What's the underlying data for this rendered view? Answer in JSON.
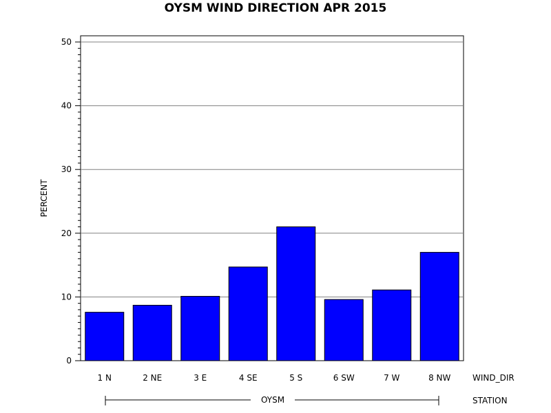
{
  "chart_data": {
    "type": "bar",
    "title": "OYSM WIND DIRECTION APR 2015",
    "ylabel": "PERCENT",
    "xlabel": "WIND_DIR",
    "group_axis_label": "STATION",
    "group_label": "OYSM",
    "categories": [
      "1 N",
      "2 NE",
      "3 E",
      "4 SE",
      "5 S",
      "6 SW",
      "7 W",
      "8 NW"
    ],
    "values": [
      7.6,
      8.7,
      10.1,
      14.7,
      21.0,
      9.6,
      11.1,
      17.0
    ],
    "ylim": [
      0,
      50
    ],
    "yticks": [
      "0",
      "10",
      "20",
      "30",
      "40",
      "50"
    ],
    "grid": true,
    "bar_color": "#0000ff"
  }
}
